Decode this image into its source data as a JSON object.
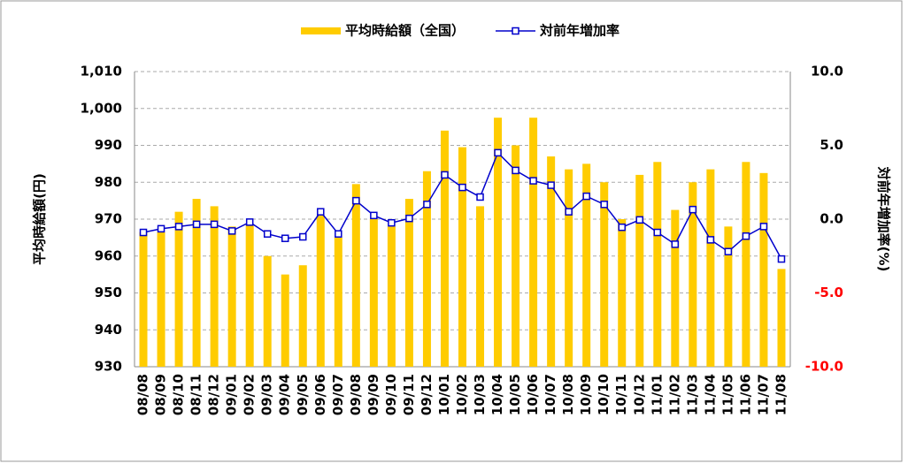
{
  "chart_data": {
    "type": "bar-line",
    "categories": [
      "08/08",
      "08/09",
      "08/10",
      "08/11",
      "08/12",
      "09/01",
      "09/02",
      "09/03",
      "09/04",
      "09/05",
      "09/06",
      "09/07",
      "09/08",
      "09/09",
      "09/10",
      "09/11",
      "09/12",
      "10/01",
      "10/02",
      "10/03",
      "10/04",
      "10/05",
      "10/06",
      "10/07",
      "10/08",
      "10/09",
      "10/10",
      "10/11",
      "10/12",
      "11/01",
      "11/02",
      "11/03",
      "11/04",
      "11/05",
      "11/06",
      "11/07",
      "11/08"
    ],
    "series": [
      {
        "name": "平均時給額（全国）",
        "type": "bar",
        "color": "#ffcc00",
        "values": [
          966.5,
          966.5,
          972,
          975.5,
          973.5,
          968,
          968.5,
          960,
          955,
          957.5,
          971,
          965,
          979.5,
          970,
          968,
          975.5,
          983,
          994,
          989.5,
          973.5,
          997.5,
          990,
          997.5,
          987,
          983.5,
          985,
          980,
          970,
          982,
          985.5,
          972.5,
          980,
          983.5,
          968,
          985.5,
          982.5,
          956.5
        ]
      },
      {
        "name": "対前年増加率",
        "type": "line",
        "axis": "y2",
        "color": "#0000cc",
        "values": [
          -0.9,
          -0.65,
          -0.5,
          -0.35,
          -0.35,
          -0.8,
          -0.2,
          -1.0,
          -1.3,
          -1.2,
          0.5,
          -1.0,
          1.25,
          0.25,
          -0.25,
          0.05,
          1.0,
          3.0,
          2.15,
          1.5,
          4.5,
          3.3,
          2.6,
          2.3,
          0.5,
          1.55,
          1.0,
          -0.55,
          -0.05,
          -0.9,
          -1.7,
          0.65,
          -1.4,
          -2.2,
          -1.15,
          -0.5,
          -2.7
        ]
      }
    ],
    "ylabel": "平均時給額(円)",
    "y2label": "対前年増加率(%)",
    "ylim": [
      930,
      1010
    ],
    "yticks": [
      930,
      940,
      950,
      960,
      970,
      980,
      990,
      {
        "value": 1000,
        "label": "1,000"
      },
      {
        "value": 1010,
        "label": "1,010"
      }
    ],
    "y2lim": [
      -10,
      10
    ],
    "y2ticks": [
      {
        "value": -10,
        "label": "-10.0"
      },
      {
        "value": -5,
        "label": "-5.0"
      },
      {
        "value": 0,
        "label": "0.0"
      },
      {
        "value": 5,
        "label": "5.0"
      },
      {
        "value": 10,
        "label": "10.0"
      }
    ],
    "y2_negative_color": "#ff0000",
    "grid": true,
    "legend": "top"
  }
}
